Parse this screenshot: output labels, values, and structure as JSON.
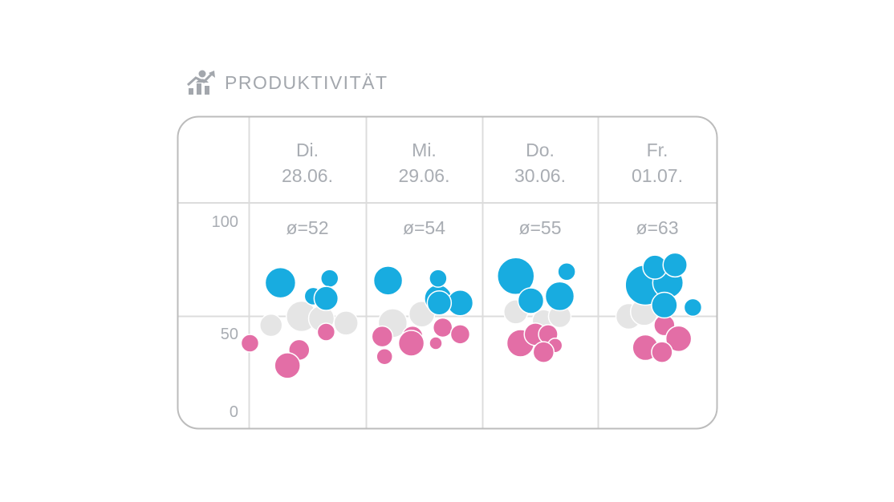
{
  "header": {
    "title": "PRODUKTIVITÄT",
    "icon": "productivity-chart-icon"
  },
  "colors": {
    "high": "#18ace0",
    "mid": "#e5e5e5",
    "low": "#e36ea6",
    "grid": "#dcdcdc",
    "frame": "#bcbcbc",
    "text": "#a9adb3"
  },
  "chart_data": {
    "type": "scatter",
    "title": "PRODUKTIVITÄT",
    "ylim": [
      0,
      100
    ],
    "yticks": [
      "0",
      "50",
      "100"
    ],
    "grid": true,
    "categories": [
      {
        "weekday": "Di.",
        "date": "28.06.",
        "average": "ø=52"
      },
      {
        "weekday": "Mi.",
        "date": "29.06.",
        "average": "ø=54"
      },
      {
        "weekday": "Do.",
        "date": "30.06.",
        "average": "ø=55"
      },
      {
        "weekday": "Fr.",
        "date": "01.07.",
        "average": "ø=63"
      }
    ],
    "bubble_groups": [
      "high",
      "mid",
      "low"
    ],
    "bubbles": [
      {
        "day": 0,
        "group": "mid",
        "offset": -0.05,
        "value": 50,
        "size": 19
      },
      {
        "day": 0,
        "group": "mid",
        "offset": 0.12,
        "value": 49,
        "size": 16
      },
      {
        "day": 0,
        "group": "mid",
        "offset": -0.31,
        "value": 46,
        "size": 14
      },
      {
        "day": 0,
        "group": "mid",
        "offset": 0.33,
        "value": 47,
        "size": 15
      },
      {
        "day": 0,
        "group": "high",
        "offset": -0.23,
        "value": 65,
        "size": 19
      },
      {
        "day": 0,
        "group": "high",
        "offset": 0.05,
        "value": 59,
        "size": 11
      },
      {
        "day": 0,
        "group": "high",
        "offset": 0.19,
        "value": 67,
        "size": 11
      },
      {
        "day": 0,
        "group": "high",
        "offset": 0.16,
        "value": 58,
        "size": 15
      },
      {
        "day": 0,
        "group": "low",
        "offset": 0.16,
        "value": 43,
        "size": 11
      },
      {
        "day": 0,
        "group": "low",
        "offset": -0.49,
        "value": 38,
        "size": 11
      },
      {
        "day": 0,
        "group": "low",
        "offset": -0.07,
        "value": 35,
        "size": 13
      },
      {
        "day": 0,
        "group": "low",
        "offset": -0.17,
        "value": 28,
        "size": 16
      },
      {
        "day": 1,
        "group": "mid",
        "offset": -0.27,
        "value": 47,
        "size": 18
      },
      {
        "day": 1,
        "group": "mid",
        "offset": -0.02,
        "value": 51,
        "size": 16
      },
      {
        "day": 1,
        "group": "high",
        "offset": -0.31,
        "value": 66,
        "size": 18
      },
      {
        "day": 1,
        "group": "high",
        "offset": 0.12,
        "value": 58,
        "size": 17
      },
      {
        "day": 1,
        "group": "high",
        "offset": 0.12,
        "value": 67,
        "size": 11
      },
      {
        "day": 1,
        "group": "high",
        "offset": 0.31,
        "value": 56,
        "size": 16
      },
      {
        "day": 1,
        "group": "high",
        "offset": 0.13,
        "value": 56,
        "size": 15
      },
      {
        "day": 1,
        "group": "low",
        "offset": -0.36,
        "value": 41,
        "size": 13
      },
      {
        "day": 1,
        "group": "low",
        "offset": -0.1,
        "value": 41,
        "size": 13
      },
      {
        "day": 1,
        "group": "low",
        "offset": -0.11,
        "value": 38,
        "size": 16
      },
      {
        "day": 1,
        "group": "low",
        "offset": 0.16,
        "value": 45,
        "size": 12
      },
      {
        "day": 1,
        "group": "low",
        "offset": 0.31,
        "value": 42,
        "size": 12
      },
      {
        "day": 1,
        "group": "low",
        "offset": 0.1,
        "value": 38,
        "size": 8
      },
      {
        "day": 1,
        "group": "low",
        "offset": -0.34,
        "value": 32,
        "size": 10
      },
      {
        "day": 2,
        "group": "mid",
        "offset": -0.21,
        "value": 52,
        "size": 15
      },
      {
        "day": 2,
        "group": "mid",
        "offset": 0.03,
        "value": 48,
        "size": 14
      },
      {
        "day": 2,
        "group": "mid",
        "offset": 0.17,
        "value": 50,
        "size": 14
      },
      {
        "day": 2,
        "group": "high",
        "offset": -0.21,
        "value": 68,
        "size": 23
      },
      {
        "day": 2,
        "group": "high",
        "offset": -0.08,
        "value": 57,
        "size": 16
      },
      {
        "day": 2,
        "group": "high",
        "offset": 0.17,
        "value": 59,
        "size": 18
      },
      {
        "day": 2,
        "group": "high",
        "offset": 0.23,
        "value": 70,
        "size": 11
      },
      {
        "day": 2,
        "group": "low",
        "offset": -0.17,
        "value": 38,
        "size": 17
      },
      {
        "day": 2,
        "group": "low",
        "offset": -0.04,
        "value": 42,
        "size": 14
      },
      {
        "day": 2,
        "group": "low",
        "offset": 0.07,
        "value": 42,
        "size": 12
      },
      {
        "day": 2,
        "group": "low",
        "offset": 0.13,
        "value": 37,
        "size": 9
      },
      {
        "day": 2,
        "group": "low",
        "offset": 0.03,
        "value": 34,
        "size": 13
      },
      {
        "day": 3,
        "group": "mid",
        "offset": -0.24,
        "value": 50,
        "size": 16
      },
      {
        "day": 3,
        "group": "mid",
        "offset": -0.11,
        "value": 52,
        "size": 17
      },
      {
        "day": 3,
        "group": "high",
        "offset": -0.1,
        "value": 64,
        "size": 25
      },
      {
        "day": 3,
        "group": "high",
        "offset": 0.09,
        "value": 65,
        "size": 19
      },
      {
        "day": 3,
        "group": "high",
        "offset": -0.02,
        "value": 72,
        "size": 15
      },
      {
        "day": 3,
        "group": "high",
        "offset": 0.15,
        "value": 73,
        "size": 15
      },
      {
        "day": 3,
        "group": "high",
        "offset": 0.06,
        "value": 55,
        "size": 16
      },
      {
        "day": 3,
        "group": "high",
        "offset": 0.3,
        "value": 54,
        "size": 11
      },
      {
        "day": 3,
        "group": "low",
        "offset": 0.06,
        "value": 46,
        "size": 13
      },
      {
        "day": 3,
        "group": "low",
        "offset": 0.18,
        "value": 40,
        "size": 16
      },
      {
        "day": 3,
        "group": "low",
        "offset": -0.1,
        "value": 36,
        "size": 16
      },
      {
        "day": 3,
        "group": "low",
        "offset": 0.04,
        "value": 34,
        "size": 13
      }
    ]
  }
}
